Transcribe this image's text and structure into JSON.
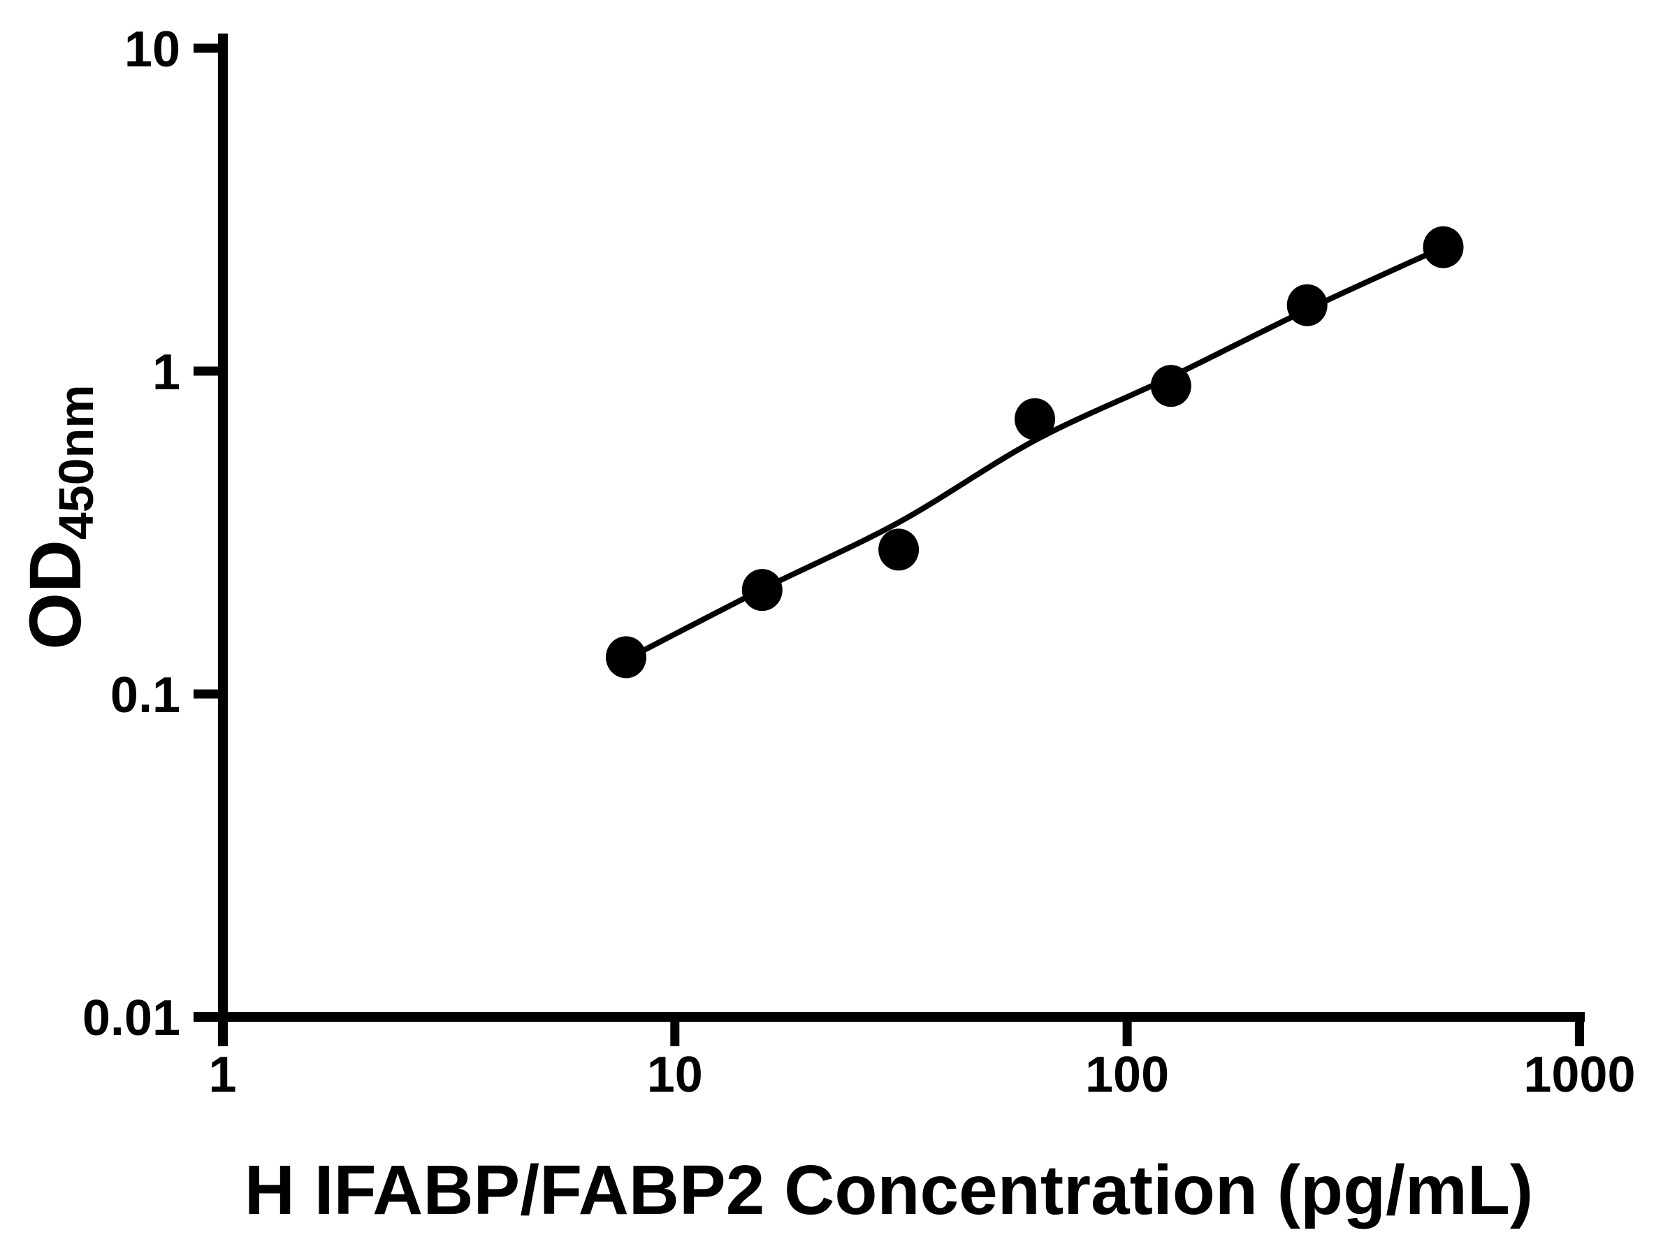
{
  "figure": {
    "background_color": "#ffffff",
    "foreground_color": "#000000"
  },
  "chart_data": {
    "type": "scatter",
    "title": "",
    "xlabel": "H IFABP/FABP2 Concentration (pg/mL)",
    "ylabel_main": "OD",
    "ylabel_sub": "450nm",
    "x_scale": "log",
    "y_scale": "log",
    "xlim": [
      1,
      1000
    ],
    "ylim": [
      0.01,
      10
    ],
    "x_ticks": [
      1,
      10,
      100,
      1000
    ],
    "x_tick_labels": [
      "1",
      "10",
      "100",
      "1000"
    ],
    "y_ticks": [
      10,
      1,
      0.1,
      0.01
    ],
    "y_tick_labels": [
      "10",
      "1",
      "0.1",
      "0.01"
    ],
    "grid": false,
    "legend": null,
    "marker_color": "#000000",
    "line_color": "#000000",
    "axis_color": "#000000",
    "points": [
      {
        "x": 7.8,
        "y": 0.13
      },
      {
        "x": 15.6,
        "y": 0.21
      },
      {
        "x": 31.25,
        "y": 0.28
      },
      {
        "x": 62.5,
        "y": 0.71
      },
      {
        "x": 125,
        "y": 0.9
      },
      {
        "x": 250,
        "y": 1.6
      },
      {
        "x": 500,
        "y": 2.42
      }
    ],
    "fit_line": {
      "description": "standard curve fit through data points",
      "points": [
        {
          "x": 7.8,
          "y": 0.128
        },
        {
          "x": 15.6,
          "y": 0.211
        },
        {
          "x": 31.25,
          "y": 0.34
        },
        {
          "x": 62.5,
          "y": 0.61
        },
        {
          "x": 125,
          "y": 0.96
        },
        {
          "x": 250,
          "y": 1.55
        },
        {
          "x": 500,
          "y": 2.42
        }
      ]
    }
  }
}
